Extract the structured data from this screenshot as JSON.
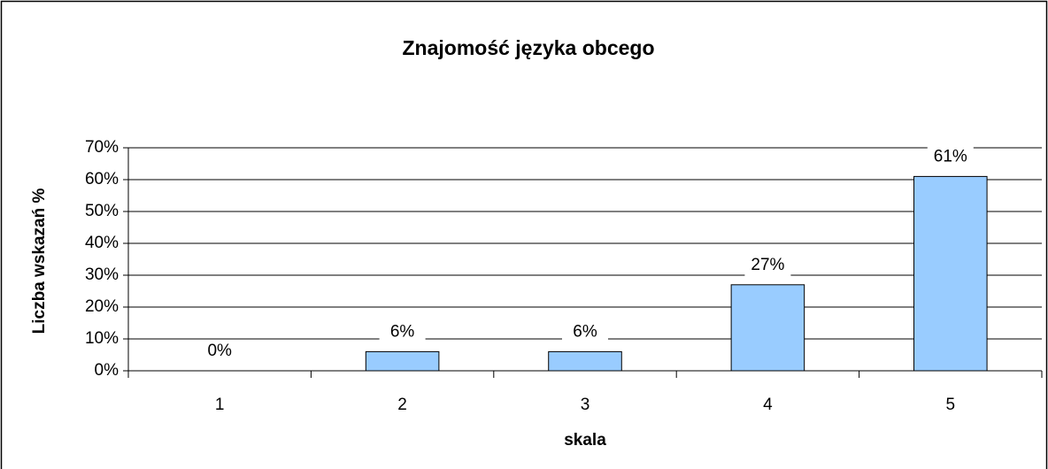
{
  "chart_data": {
    "type": "bar",
    "title": "Znajomość języka obcego",
    "xlabel": "skala",
    "ylabel": "Liczba wskazań %",
    "categories": [
      "1",
      "2",
      "3",
      "4",
      "5"
    ],
    "values": [
      0,
      6,
      6,
      27,
      61
    ],
    "value_labels": [
      "0%",
      "6%",
      "6%",
      "27%",
      "61%"
    ],
    "color": "#99ccff",
    "ylim": [
      0,
      70
    ],
    "yticks": [
      {
        "value": 0,
        "label": "0%"
      },
      {
        "value": 10,
        "label": "10%"
      },
      {
        "value": 20,
        "label": "20%"
      },
      {
        "value": 30,
        "label": "30%"
      },
      {
        "value": 40,
        "label": "40%"
      },
      {
        "value": 50,
        "label": "50%"
      },
      {
        "value": 60,
        "label": "60%"
      },
      {
        "value": 70,
        "label": "70%"
      }
    ],
    "grid": true
  }
}
